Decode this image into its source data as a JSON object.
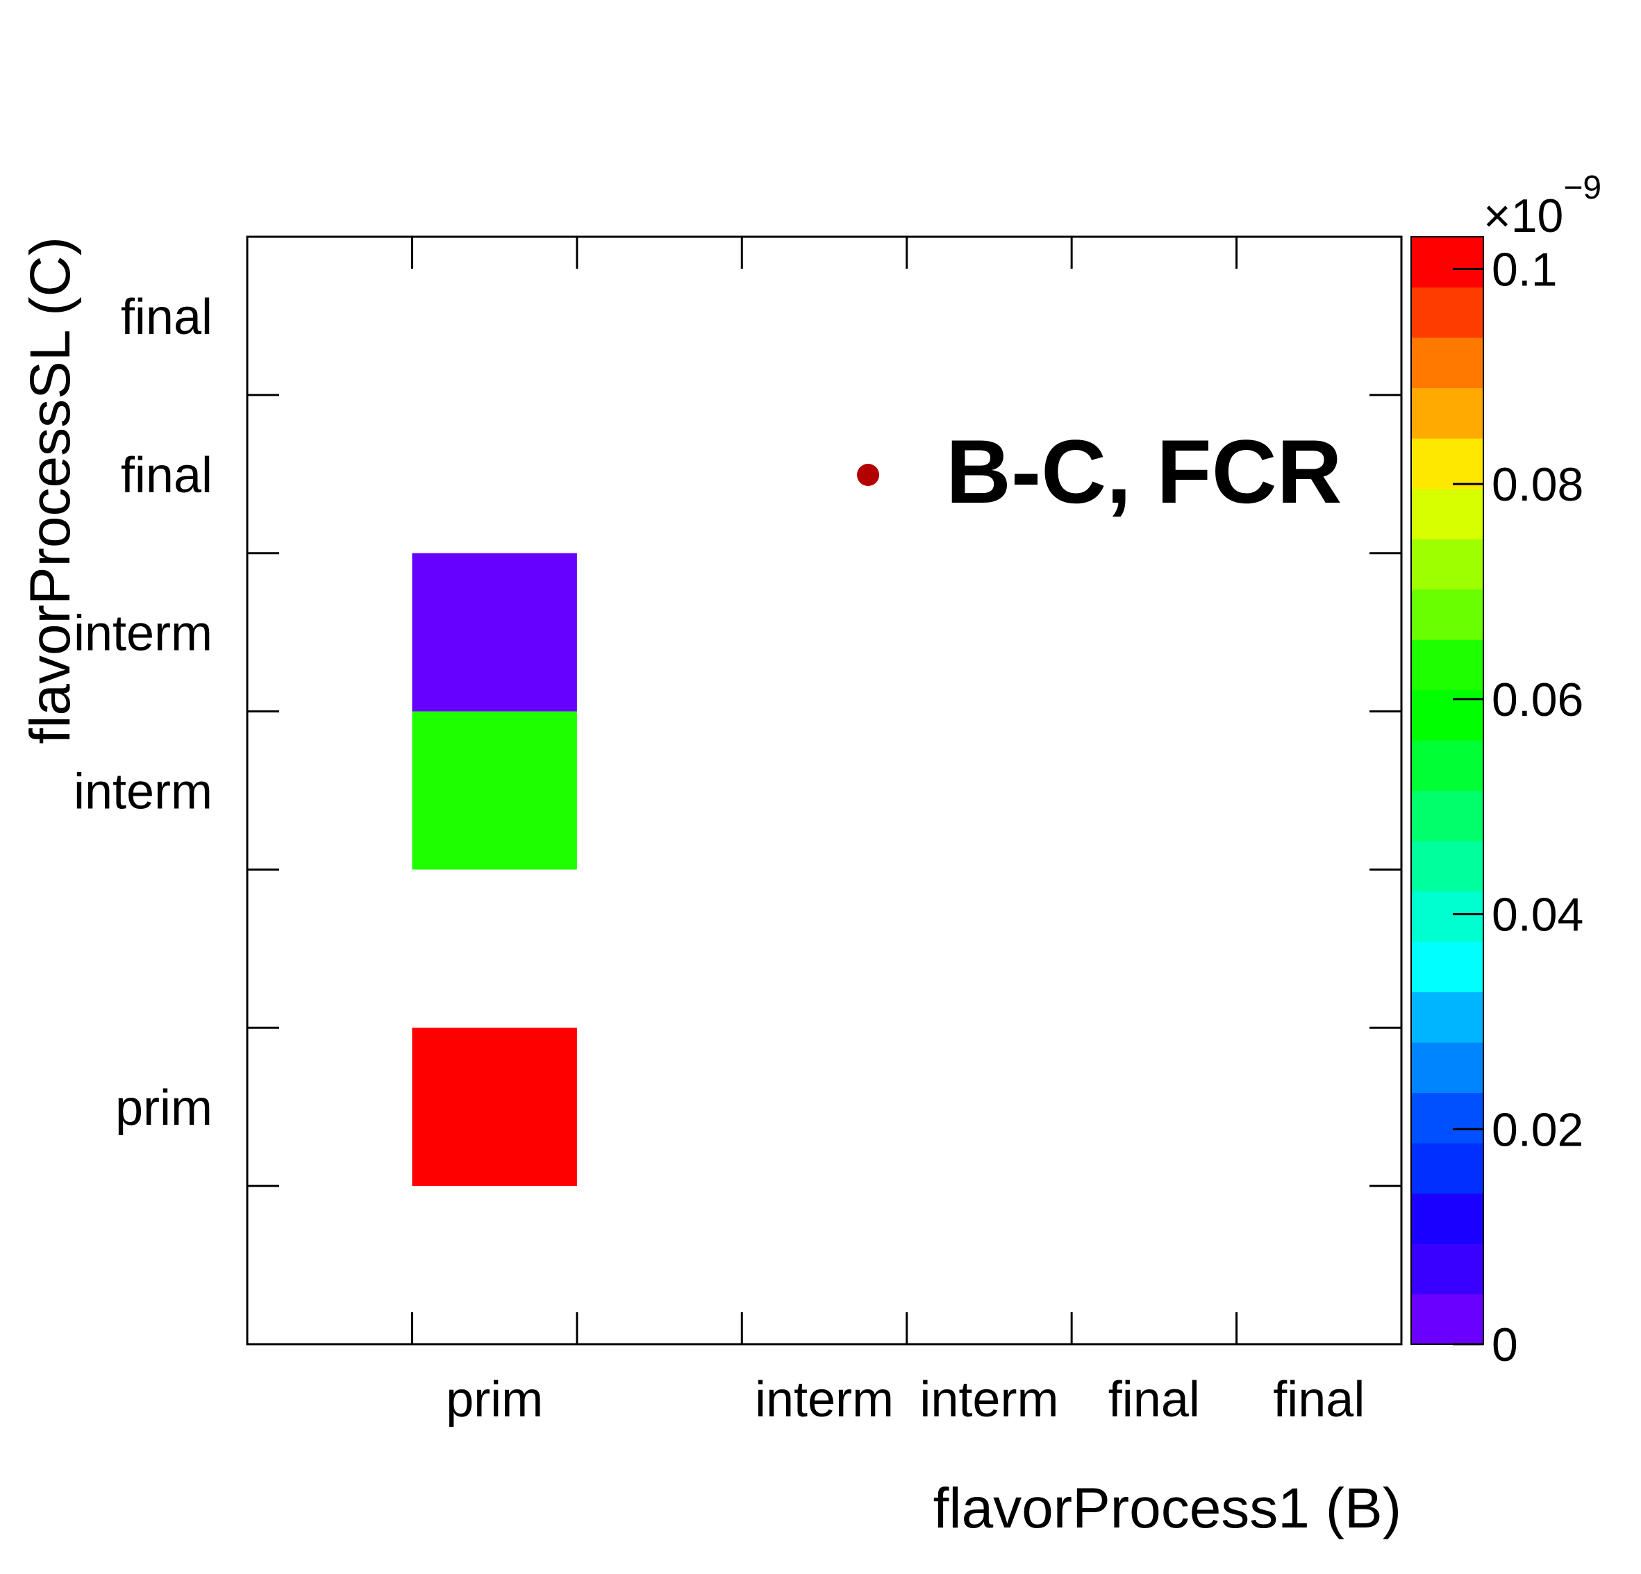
{
  "chart_data": {
    "type": "heatmap",
    "xlabel": "flavorProcess1 (B)",
    "ylabel": "flavorProcessSL (C)",
    "x_categories": [
      "",
      "prim",
      "",
      "interm",
      "interm",
      "final",
      "final"
    ],
    "y_categories": [
      "",
      "prim",
      "",
      "interm",
      "interm",
      "final",
      "final"
    ],
    "cells": [
      {
        "x_index": 1,
        "y_index": 1,
        "value": 1e-10,
        "color": "#ff0000"
      },
      {
        "x_index": 1,
        "y_index": 3,
        "value": 5.6e-11,
        "color": "#1eff00"
      },
      {
        "x_index": 1,
        "y_index": 4,
        "value": 3e-12,
        "color": "#6600ff"
      }
    ],
    "colorbar": {
      "multiplier": "×10⁻⁹",
      "multiplier_base": "×10",
      "multiplier_exp": "−9",
      "range": [
        0,
        0.103
      ],
      "tick_values": [
        0,
        0.02,
        0.04,
        0.06,
        0.08,
        0.1
      ],
      "tick_labels": [
        "0",
        "0.02",
        "0.04",
        "0.06",
        "0.08",
        "0.1"
      ],
      "band_colors": [
        "#6a00ff",
        "#3a00ff",
        "#1a00ff",
        "#0030ff",
        "#0050ff",
        "#0085ff",
        "#00b5ff",
        "#00ffff",
        "#00ffd0",
        "#00ff9d",
        "#00ff6a",
        "#00ff33",
        "#00ff00",
        "#1eff00",
        "#6aff00",
        "#9dff00",
        "#d8ff00",
        "#ffe800",
        "#ffaa00",
        "#ff7800",
        "#ff3c00",
        "#ff0000"
      ]
    },
    "legend": {
      "label": "B-C, FCR",
      "marker_color": "#b30000",
      "placement": "top-right"
    },
    "grid": false
  }
}
